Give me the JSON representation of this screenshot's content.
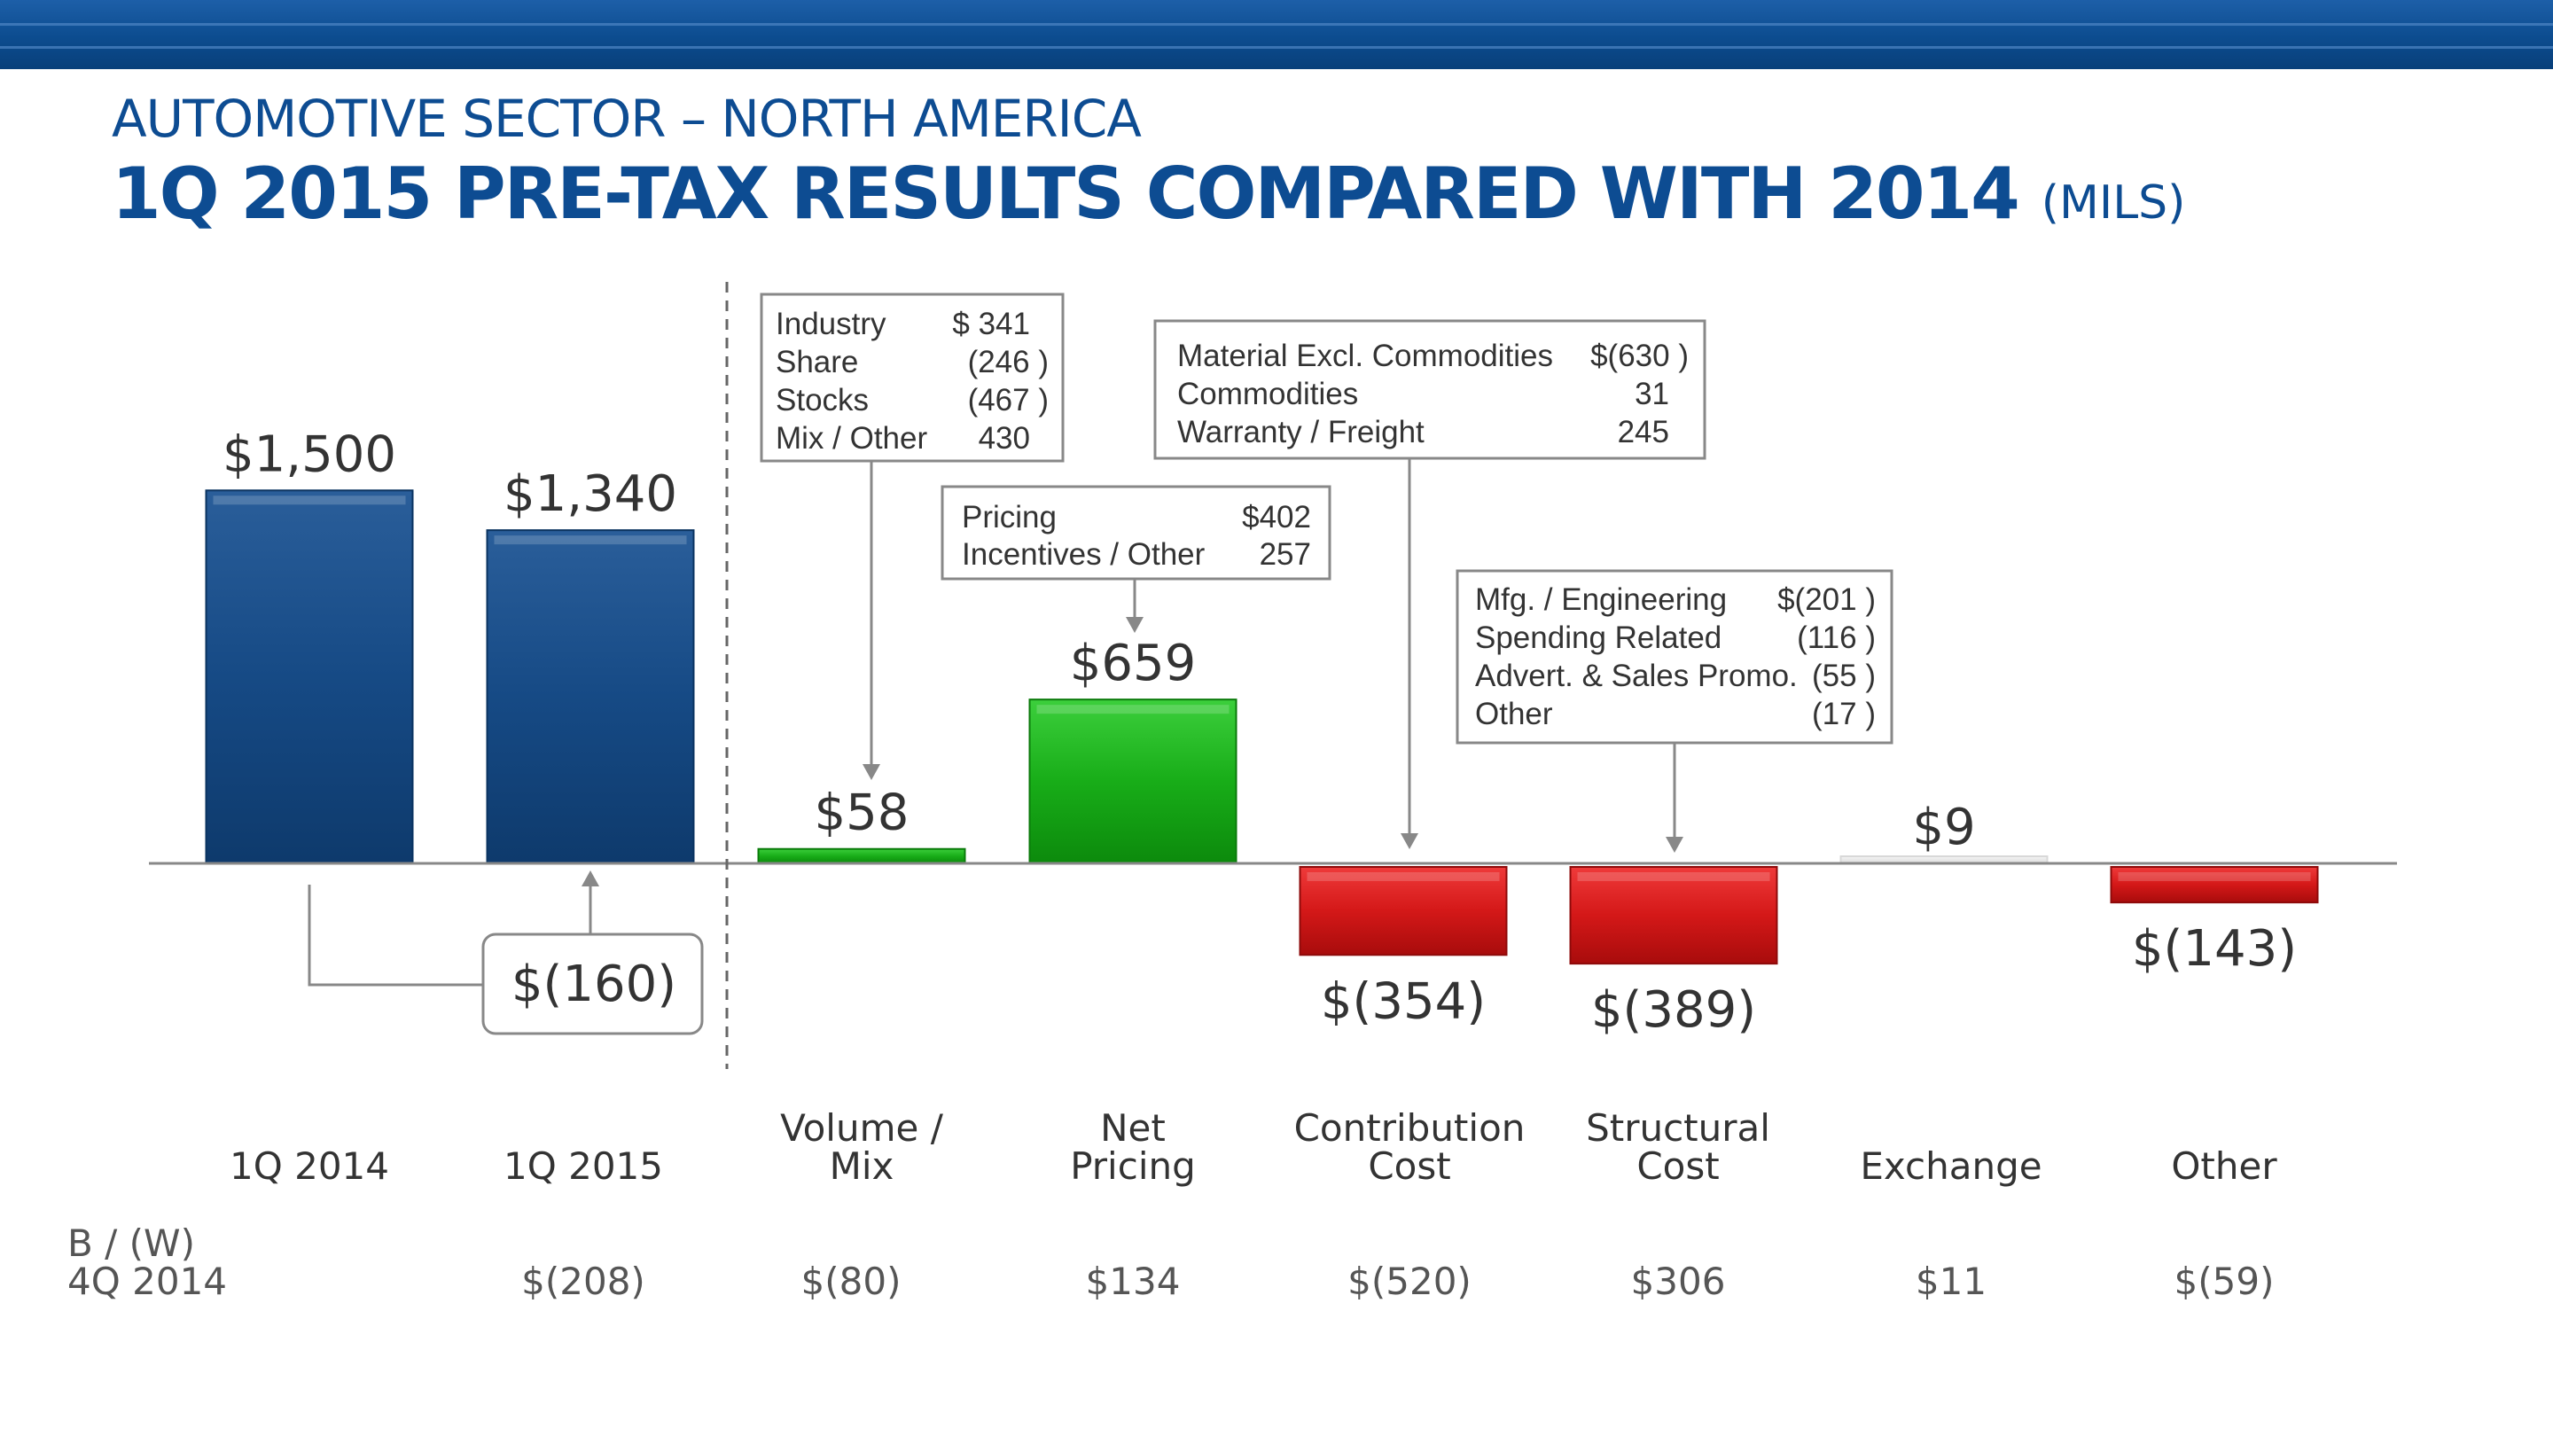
{
  "header": {
    "title": "AUTOMOTIVE SECTOR – NORTH AMERICA",
    "subtitle": "1Q 2015 PRE-TAX RESULTS COMPARED WITH 2014",
    "unit": "(MILS)"
  },
  "colors": {
    "brand_blue": "#0d4c92",
    "bar_blue": "#1a4f8a",
    "bar_green": "#1aa51a",
    "bar_red": "#d21919",
    "bar_gray": "#e8e8e8"
  },
  "chart_data": {
    "type": "bar",
    "subtype": "waterfall",
    "title": "1Q 2015 PRE-TAX RESULTS COMPARED WITH 2014 (MILS)",
    "categories": [
      "1Q 2014",
      "1Q 2015",
      "Volume / Mix",
      "Net Pricing",
      "Contribution Cost",
      "Structural Cost",
      "Exchange",
      "Other"
    ],
    "category_lines": [
      [
        "1Q 2014"
      ],
      [
        "1Q 2015"
      ],
      [
        "Volume /",
        "Mix"
      ],
      [
        "Net",
        "Pricing"
      ],
      [
        "Contribution",
        "Cost"
      ],
      [
        "Structural",
        "Cost"
      ],
      [
        "Exchange"
      ],
      [
        "Other"
      ]
    ],
    "values": [
      1500,
      1340,
      58,
      659,
      -354,
      -389,
      9,
      -143
    ],
    "value_labels": [
      "$1,500",
      "$1,340",
      "$58",
      "$659",
      "$(354)",
      "$(389)",
      "$9",
      "$(143)"
    ],
    "bar_kinds": [
      "total",
      "total",
      "positive",
      "positive",
      "negative",
      "negative",
      "neutral",
      "negative"
    ],
    "difference": {
      "value": -160,
      "label": "$(160)",
      "from": "1Q 2014",
      "to": "1Q 2015"
    },
    "bw_label_lines": [
      "B / (W)",
      "4Q 2014"
    ],
    "bw_values": [
      "",
      "$(208)",
      "$(80)",
      "$134",
      "$(520)",
      "$306",
      "$11",
      "$(59)"
    ],
    "annotations": [
      {
        "target": "Volume / Mix",
        "rows": [
          [
            "Industry",
            "$  341"
          ],
          [
            "Share",
            "(246 )"
          ],
          [
            "Stocks",
            "(467 )"
          ],
          [
            "Mix / Other",
            "430"
          ]
        ]
      },
      {
        "target": "Net Pricing",
        "rows": [
          [
            "Pricing",
            "$402"
          ],
          [
            "Incentives / Other",
            "257"
          ]
        ]
      },
      {
        "target": "Contribution Cost",
        "rows": [
          [
            "Material Excl. Commodities",
            "$(630 )"
          ],
          [
            "Commodities",
            "31"
          ],
          [
            "Warranty / Freight",
            "245"
          ]
        ]
      },
      {
        "target": "Structural Cost",
        "rows": [
          [
            "Mfg. / Engineering",
            "$(201 )"
          ],
          [
            "Spending Related",
            "(116 )"
          ],
          [
            "Advert. & Sales Promo.",
            "(55 )"
          ],
          [
            "Other",
            "(17 )"
          ]
        ]
      }
    ]
  }
}
